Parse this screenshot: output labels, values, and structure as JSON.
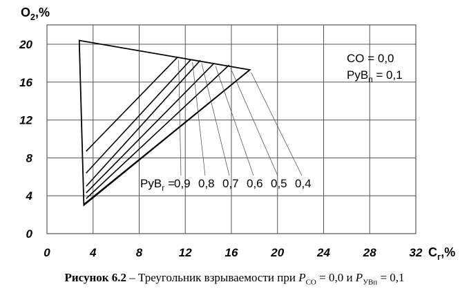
{
  "chart_data": {
    "type": "line",
    "xlabel": "Cг,%",
    "ylabel": "O₂,%",
    "xlim": [
      0,
      32
    ],
    "ylim": [
      0,
      20
    ],
    "x_ticks": [
      "0",
      "4",
      "8",
      "12",
      "16",
      "20",
      "24",
      "28",
      "32"
    ],
    "y_ticks": [
      "0",
      "4",
      "8",
      "12",
      "16",
      "20"
    ],
    "grid": true,
    "x_axis_title": {
      "main": "C",
      "sub": "г",
      "tail": ",%"
    },
    "y_axis_title": {
      "main": "O",
      "sub": "2",
      "tail": ",%"
    },
    "triangle": {
      "points": [
        [
          2.8,
          20.4
        ],
        [
          3.2,
          3.0
        ],
        [
          17.6,
          17.3
        ]
      ]
    },
    "series": [
      {
        "label": "0,9",
        "lower": [
          3.4,
          8.7
        ],
        "upper": [
          11.3,
          18.6
        ]
      },
      {
        "label": "0,8",
        "lower": [
          3.4,
          6.4
        ],
        "upper": [
          12.5,
          18.4
        ]
      },
      {
        "label": "0,7",
        "lower": [
          3.4,
          5.0
        ],
        "upper": [
          13.3,
          18.3
        ]
      },
      {
        "label": "0,6",
        "lower": [
          3.4,
          4.3
        ],
        "upper": [
          14.5,
          18.0
        ]
      },
      {
        "label": "0,5",
        "lower": [
          3.4,
          3.7
        ],
        "upper": [
          15.8,
          17.8
        ]
      },
      {
        "label": "0,4",
        "lower": [
          3.2,
          3.1
        ],
        "upper": [
          17.6,
          17.3
        ]
      }
    ],
    "legend_prefix": {
      "main": "PyВ",
      "sub": "г",
      "tail": " = "
    },
    "annotation_co": {
      "text": "CO  = 0,0"
    },
    "annotation_pyvp": {
      "main": "PyВ",
      "sub": "п",
      "tail": " = 0,1"
    }
  },
  "caption": {
    "bold": "Рисунок 6.2",
    "text": " – Треугольник взрываемости при ",
    "p1": "P",
    "p1_sub": "CO",
    "eq1": " = 0,0 и ",
    "p2": "P",
    "p2_sub": "УВп",
    "eq2": " = 0,1"
  }
}
